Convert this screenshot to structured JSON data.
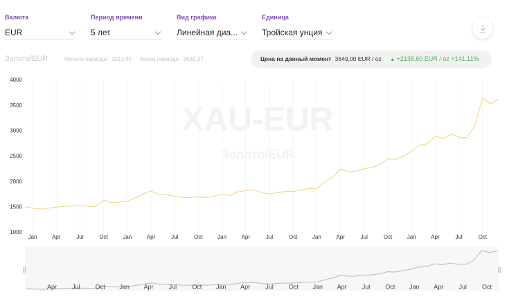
{
  "controls": [
    {
      "label": "Валюта",
      "value": "EUR"
    },
    {
      "label": "Период времени",
      "value": "5 лет"
    },
    {
      "label": "Вид графика",
      "value": "Линейная диа..."
    },
    {
      "label": "Единица",
      "value": "Тройская унция"
    }
  ],
  "summary": {
    "start": "Начало периода : 1513,40",
    "end": "Конец периода : 3632,37",
    "current_label": "Цена на данный момент",
    "current_value": "3649,00 EUR / oz",
    "change": "+2135,60 EUR / oz +141.11%"
  },
  "chart_data": {
    "type": "line",
    "title": "Золото/EUR",
    "watermark": "XAU-EUR",
    "watermark_subtitle": "Золото/EUR",
    "categories": [
      null,
      "Jan",
      null,
      null,
      "Apr",
      null,
      null,
      "Jul",
      null,
      null,
      "Oct",
      null,
      null,
      "Jan",
      null,
      null,
      "Apr",
      null,
      null,
      "Jul",
      null,
      null,
      "Oct",
      null,
      null,
      "Jan",
      null,
      null,
      "Apr",
      null,
      null,
      "Jul",
      null,
      null,
      "Oct",
      null,
      null,
      "Jan",
      null,
      null,
      "Apr",
      null,
      null,
      "Jul",
      null,
      null,
      "Oct",
      null,
      null,
      "Jan",
      null,
      null,
      "Apr",
      null,
      null,
      "Jul",
      null,
      null,
      "Oct",
      null,
      null
    ],
    "values": [
      1510,
      1480,
      1460,
      1480,
      1500,
      1515,
      1525,
      1530,
      1520,
      1510,
      1640,
      1590,
      1600,
      1620,
      1680,
      1760,
      1820,
      1750,
      1740,
      1720,
      1690,
      1690,
      1700,
      1690,
      1720,
      1760,
      1730,
      1800,
      1830,
      1840,
      1790,
      1760,
      1790,
      1810,
      1810,
      1840,
      1870,
      1870,
      1990,
      2100,
      2250,
      2200,
      2210,
      2260,
      2280,
      2340,
      2450,
      2440,
      2510,
      2600,
      2720,
      2750,
      2900,
      2850,
      2940,
      2880,
      2870,
      3100,
      3650,
      3540,
      3620
    ],
    "color": "#f0d27a",
    "ylim": [
      1000,
      4000
    ],
    "yticks": [
      1000,
      1500,
      2000,
      2500,
      3000,
      3500,
      4000
    ],
    "navigator": {
      "categories": [
        "Apr",
        "Jul",
        "Oct",
        "Jan",
        "Apr",
        "Jul",
        "Oct",
        "Jan",
        "Apr",
        "Jul",
        "Oct",
        "Jan",
        "Apr",
        "Jul",
        "Oct",
        "Jan",
        "Apr",
        "Jul",
        "Oct"
      ],
      "color": "#b8b8b8"
    }
  }
}
